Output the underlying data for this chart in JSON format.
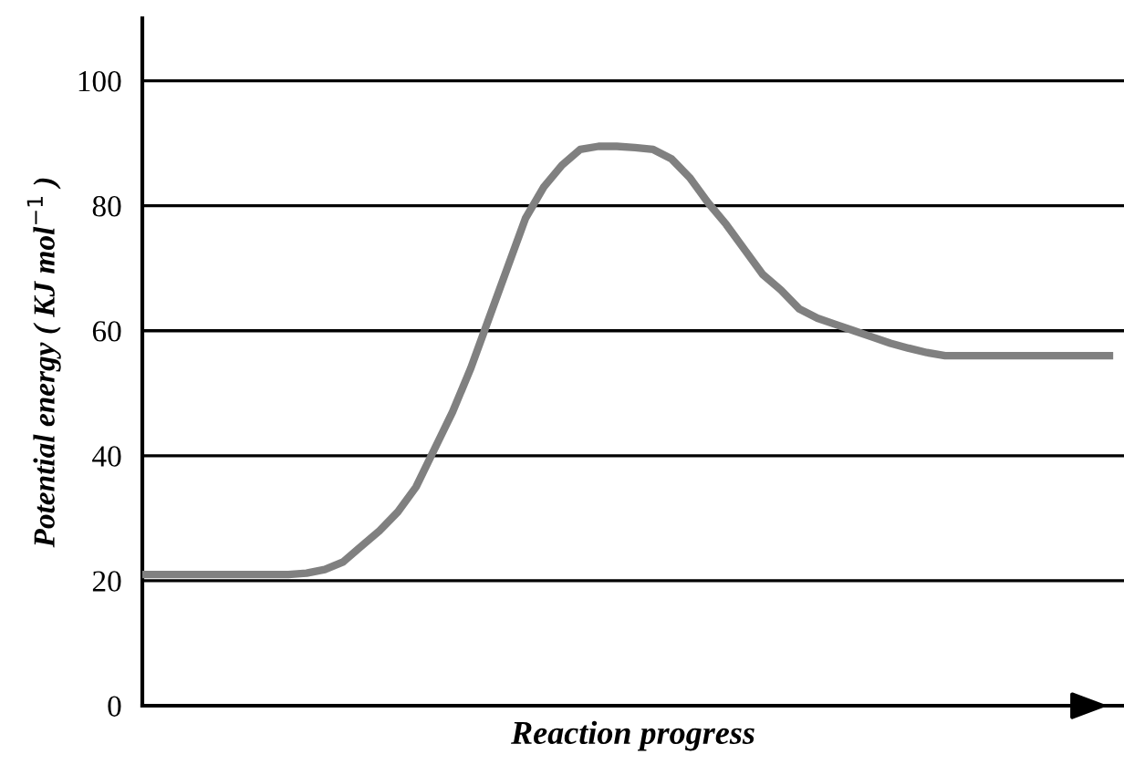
{
  "chart_data": {
    "type": "line",
    "xlabel": "Reaction progress",
    "ylabel": "Potential energy ( KJ mol$^{−1}$ )",
    "categories": [
      null,
      null,
      null,
      null,
      null,
      null,
      null,
      null,
      null,
      null,
      null,
      null,
      null,
      null,
      null,
      null,
      null,
      null,
      null,
      null,
      null,
      null,
      null,
      null,
      null,
      null,
      null,
      null,
      null,
      null,
      null,
      null,
      null,
      null,
      null,
      null,
      null,
      null,
      null,
      null,
      null,
      null,
      null,
      null,
      null,
      null,
      null,
      null,
      null,
      null,
      null,
      null,
      null,
      null
    ],
    "series": [
      {
        "color": "#808080",
        "values": [
          21,
          21,
          21,
          21,
          21,
          21,
          21,
          21,
          21,
          21.2,
          21.8,
          23,
          25.5,
          28,
          31,
          35,
          41,
          47,
          54,
          62,
          70,
          78,
          83,
          86.5,
          89,
          89.5,
          89.5,
          89.3,
          89,
          87.5,
          84.5,
          80.5,
          77,
          73,
          69,
          66.5,
          63.5,
          62,
          61,
          60,
          59,
          58,
          57.2,
          56.5,
          56,
          56,
          56,
          56,
          56,
          56,
          56,
          56,
          56,
          56
        ]
      }
    ],
    "ylim": [
      0,
      110
    ],
    "yticks": [
      0,
      20,
      40,
      60,
      80,
      100
    ],
    "grid": "y",
    "tick_labels": "y",
    "marker": "none",
    "line_style": "solid"
  }
}
